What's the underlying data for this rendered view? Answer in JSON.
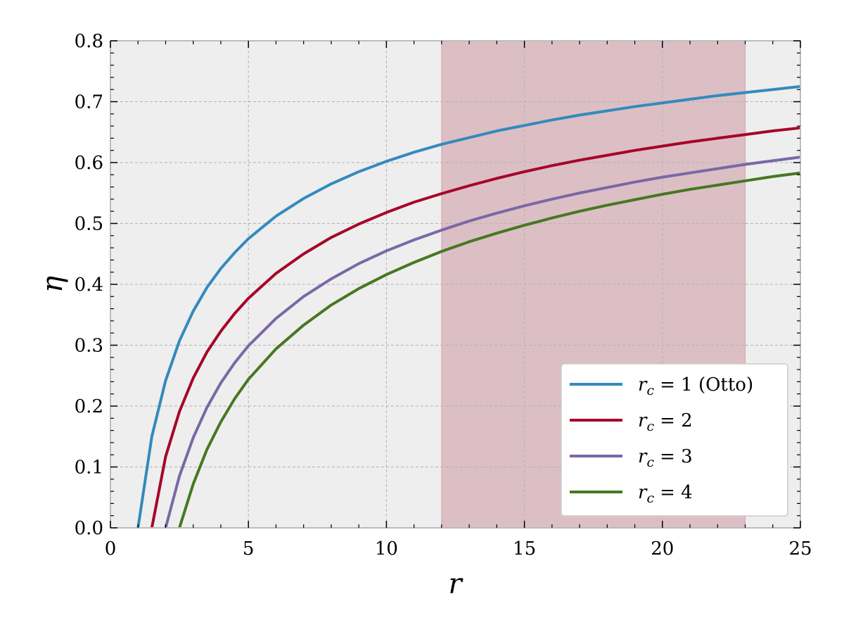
{
  "chart_data": {
    "type": "line",
    "title": "",
    "xlabel": "r",
    "ylabel": "η",
    "xlim": [
      0,
      25
    ],
    "ylim": [
      0.0,
      0.8
    ],
    "xticks": [
      0,
      5,
      10,
      15,
      20,
      25
    ],
    "xtick_labels": [
      "0",
      "5",
      "10",
      "15",
      "20",
      "25"
    ],
    "yticks": [
      0.0,
      0.1,
      0.2,
      0.3,
      0.4,
      0.5,
      0.6,
      0.7,
      0.8
    ],
    "ytick_labels": [
      "0.0",
      "0.1",
      "0.2",
      "0.3",
      "0.4",
      "0.5",
      "0.6",
      "0.7",
      "0.8"
    ],
    "grid": true,
    "legend_position": "lower-right",
    "shaded_region": {
      "x_start": 12,
      "x_end": 23,
      "color": "#a8344d"
    },
    "background_color": "#eeeeee",
    "series": [
      {
        "name": "r_c = 1 (Otto)",
        "legend_var": "r",
        "legend_sub": "c",
        "legend_value": "= 1 (Otto)",
        "color": "#348abd",
        "x": [
          1.0,
          1.5,
          2,
          2.5,
          3,
          3.5,
          4,
          4.5,
          5,
          6,
          7,
          8,
          9,
          10,
          11,
          12,
          13,
          14,
          15,
          16,
          17,
          18,
          19,
          20,
          21,
          22,
          23,
          24,
          25
        ],
        "y": [
          0.0,
          0.15,
          0.242,
          0.307,
          0.356,
          0.395,
          0.426,
          0.452,
          0.475,
          0.512,
          0.541,
          0.565,
          0.585,
          0.602,
          0.617,
          0.63,
          0.641,
          0.652,
          0.661,
          0.67,
          0.678,
          0.685,
          0.692,
          0.698,
          0.704,
          0.71,
          0.715,
          0.72,
          0.725
        ]
      },
      {
        "name": "r_c = 2",
        "legend_var": "r",
        "legend_sub": "c",
        "legend_value": "= 2",
        "color": "#a60628",
        "x": [
          1.5,
          2,
          2.5,
          3,
          3.5,
          4,
          4.5,
          5,
          6,
          7,
          8,
          9,
          10,
          11,
          12,
          13,
          14,
          15,
          16,
          17,
          18,
          19,
          20,
          21,
          22,
          23,
          24,
          25
        ],
        "y": [
          0.0,
          0.117,
          0.191,
          0.246,
          0.289,
          0.323,
          0.352,
          0.377,
          0.418,
          0.45,
          0.477,
          0.499,
          0.518,
          0.535,
          0.549,
          0.562,
          0.574,
          0.585,
          0.595,
          0.604,
          0.612,
          0.62,
          0.627,
          0.634,
          0.64,
          0.646,
          0.652,
          0.657
        ]
      },
      {
        "name": "r_c = 3",
        "legend_var": "r",
        "legend_sub": "c",
        "legend_value": "= 3",
        "color": "#7a68a6",
        "x": [
          2.0,
          2.5,
          3,
          3.5,
          4,
          4.5,
          5,
          6,
          7,
          8,
          9,
          10,
          11,
          12,
          13,
          14,
          15,
          16,
          17,
          18,
          19,
          20,
          21,
          22,
          23,
          24,
          25
        ],
        "y": [
          0.0,
          0.085,
          0.148,
          0.198,
          0.238,
          0.271,
          0.299,
          0.344,
          0.38,
          0.409,
          0.434,
          0.455,
          0.473,
          0.489,
          0.504,
          0.517,
          0.529,
          0.54,
          0.55,
          0.559,
          0.568,
          0.576,
          0.583,
          0.59,
          0.597,
          0.603,
          0.609
        ]
      },
      {
        "name": "r_c = 4",
        "legend_var": "r",
        "legend_sub": "c",
        "legend_value": "= 4",
        "color": "#467821",
        "x": [
          2.5,
          3,
          3.5,
          4,
          4.5,
          5,
          6,
          7,
          8,
          9,
          10,
          11,
          12,
          13,
          14,
          15,
          16,
          17,
          18,
          19,
          20,
          21,
          22,
          23,
          24,
          25
        ],
        "y": [
          0.0,
          0.072,
          0.129,
          0.174,
          0.212,
          0.244,
          0.294,
          0.333,
          0.366,
          0.393,
          0.416,
          0.436,
          0.454,
          0.47,
          0.484,
          0.497,
          0.509,
          0.52,
          0.53,
          0.539,
          0.548,
          0.556,
          0.563,
          0.57,
          0.577,
          0.583
        ]
      }
    ]
  }
}
